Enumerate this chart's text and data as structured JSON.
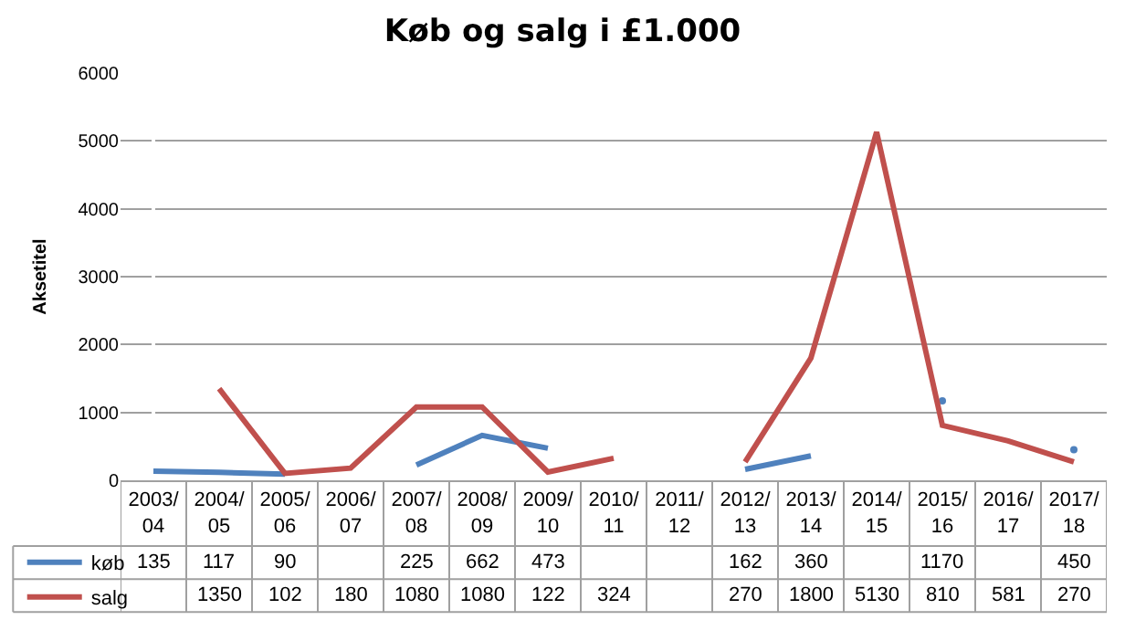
{
  "chart_data": {
    "type": "line",
    "title": "Køb og salg i £1.000",
    "ylabel": "Aksetitel",
    "categories": [
      "2003/04",
      "2004/05",
      "2005/06",
      "2006/07",
      "2007/08",
      "2008/09",
      "2009/10",
      "2010/11",
      "2011/12",
      "2012/13",
      "2013/14",
      "2014/15",
      "2015/16",
      "2016/17",
      "2017/18"
    ],
    "series": [
      {
        "name": "køb",
        "color": "#4f81bd",
        "values": [
          135,
          117,
          90,
          null,
          225,
          662,
          473,
          null,
          null,
          162,
          360,
          null,
          1170,
          null,
          450
        ]
      },
      {
        "name": "salg",
        "color": "#c0504d",
        "values": [
          null,
          1350,
          102,
          180,
          1080,
          1080,
          122,
          324,
          null,
          270,
          1800,
          5130,
          810,
          581,
          270
        ]
      }
    ],
    "ylim": [
      0,
      6000
    ],
    "yticks": [
      0,
      1000,
      2000,
      3000,
      4000,
      5000,
      6000
    ],
    "grid": "y",
    "legend": "bottom left",
    "data_labels": true,
    "marker": "none"
  }
}
